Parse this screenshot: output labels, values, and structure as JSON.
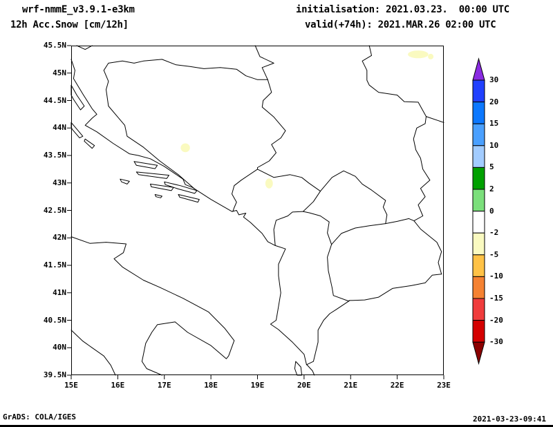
{
  "header": {
    "model": "wrf-nmmE_v3.9.1-e3km",
    "field": "12h Acc.Snow [cm/12h]",
    "initialisation": "initialisation: 2021.03.23.  00:00 UTC",
    "valid": "valid(+74h): 2021.MAR.26 02:00 UTC"
  },
  "footer": {
    "left": "GrADS: COLA/IGES",
    "right": "2021-03-23-09:41"
  },
  "chart_data": {
    "type": "heatmap",
    "title": "12h Acc.Snow [cm/12h]",
    "model_run": "wrf-nmmE_v3.9.1-e3km",
    "init_time": "2021.03.23. 00:00 UTC",
    "valid_time": "2021.MAR.26 02:00 UTC",
    "lead_hours": 74,
    "units": "cm/12h",
    "projection": "latlon",
    "region": "Balkans / Adriatic",
    "grid": false,
    "legend_position": "right",
    "background_value": 0,
    "x_axis": {
      "label": "longitude",
      "min": 15,
      "max": 23,
      "ticks": [
        {
          "v": 15,
          "label": "15E"
        },
        {
          "v": 16,
          "label": "16E"
        },
        {
          "v": 17,
          "label": "17E"
        },
        {
          "v": 18,
          "label": "18E"
        },
        {
          "v": 19,
          "label": "19E"
        },
        {
          "v": 20,
          "label": "20E"
        },
        {
          "v": 21,
          "label": "21E"
        },
        {
          "v": 22,
          "label": "22E"
        },
        {
          "v": 23,
          "label": "23E"
        }
      ]
    },
    "y_axis": {
      "label": "latitude",
      "min": 39.5,
      "max": 45.5,
      "ticks": [
        {
          "v": 45.5,
          "label": "45.5N"
        },
        {
          "v": 45,
          "label": "45N"
        },
        {
          "v": 44.5,
          "label": "44.5N"
        },
        {
          "v": 44,
          "label": "44N"
        },
        {
          "v": 43.5,
          "label": "43.5N"
        },
        {
          "v": 43,
          "label": "43N"
        },
        {
          "v": 42.5,
          "label": "42.5N"
        },
        {
          "v": 42,
          "label": "42N"
        },
        {
          "v": 41.5,
          "label": "41.5N"
        },
        {
          "v": 41,
          "label": "41N"
        },
        {
          "v": 40.5,
          "label": "40.5N"
        },
        {
          "v": 40,
          "label": "40N"
        },
        {
          "v": 39.5,
          "label": "39.5N"
        }
      ]
    },
    "colorbar": {
      "boundary_labels": [
        "30",
        "20",
        "15",
        "10",
        "5",
        "2",
        "0",
        "-2",
        "-5",
        "-10",
        "-15",
        "-20",
        "-30"
      ],
      "colors_top_to_bottom": [
        "#8A2BE2",
        "#2040FF",
        "#0C78FF",
        "#4AA0FF",
        "#A2CCFF",
        "#00A000",
        "#7BDF7B",
        "#FFFFFF",
        "#FAFAC0",
        "#FFC246",
        "#F58232",
        "#F03C3C",
        "#D40000",
        "#8B0000"
      ]
    },
    "snow_patches": [
      {
        "lon": 22.45,
        "lat": 45.34,
        "rx_deg": 0.22,
        "ry_deg": 0.07,
        "color": "#FAFAC0",
        "band_cm": "-5 to -2"
      },
      {
        "lon": 22.72,
        "lat": 45.3,
        "rx_deg": 0.06,
        "ry_deg": 0.05,
        "color": "#FAFAC0",
        "band_cm": "-5 to -2"
      },
      {
        "lon": 17.45,
        "lat": 43.64,
        "rx_deg": 0.1,
        "ry_deg": 0.08,
        "color": "#FAFAC0",
        "band_cm": "-5 to -2"
      },
      {
        "lon": 19.25,
        "lat": 42.99,
        "rx_deg": 0.08,
        "ry_deg": 0.09,
        "color": "#FAFAC0",
        "band_cm": "-5 to -2"
      }
    ]
  }
}
